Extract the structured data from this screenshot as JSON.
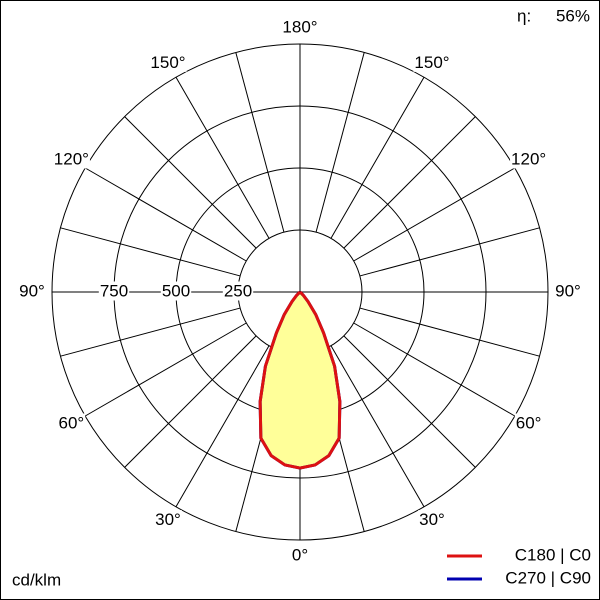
{
  "chart_data": {
    "type": "polar",
    "unit_label": "cd/klm",
    "efficiency_label": "η:",
    "efficiency": "56%",
    "rlim": [
      0,
      1000
    ],
    "rticks": [
      250,
      500,
      750
    ],
    "angle_ticks": [
      {
        "value": 0,
        "label": "0°"
      },
      {
        "value": 30,
        "label": "30°"
      },
      {
        "value": 60,
        "label": "60°"
      },
      {
        "value": 90,
        "label": "90°"
      },
      {
        "value": 120,
        "label": "120°"
      },
      {
        "value": 150,
        "label": "150°"
      },
      {
        "value": 180,
        "label": "180°"
      }
    ],
    "angles": [
      0,
      5,
      10,
      15,
      20,
      25,
      30,
      35,
      40,
      45,
      50,
      55,
      60,
      65,
      70,
      75,
      80,
      85,
      90
    ],
    "fill": "#ffff99",
    "series": [
      {
        "name": "C270 | C90",
        "color": "#0000b0",
        "values": [
          710,
          700,
          670,
          610,
          470,
          330,
          190,
          110,
          50,
          20,
          5,
          0,
          0,
          0,
          0,
          0,
          0,
          0,
          0
        ]
      },
      {
        "name": "C180 | C0",
        "color": "#dd1111",
        "values": [
          710,
          700,
          670,
          610,
          470,
          330,
          190,
          110,
          50,
          20,
          5,
          0,
          0,
          0,
          0,
          0,
          0,
          0,
          0
        ]
      }
    ]
  }
}
